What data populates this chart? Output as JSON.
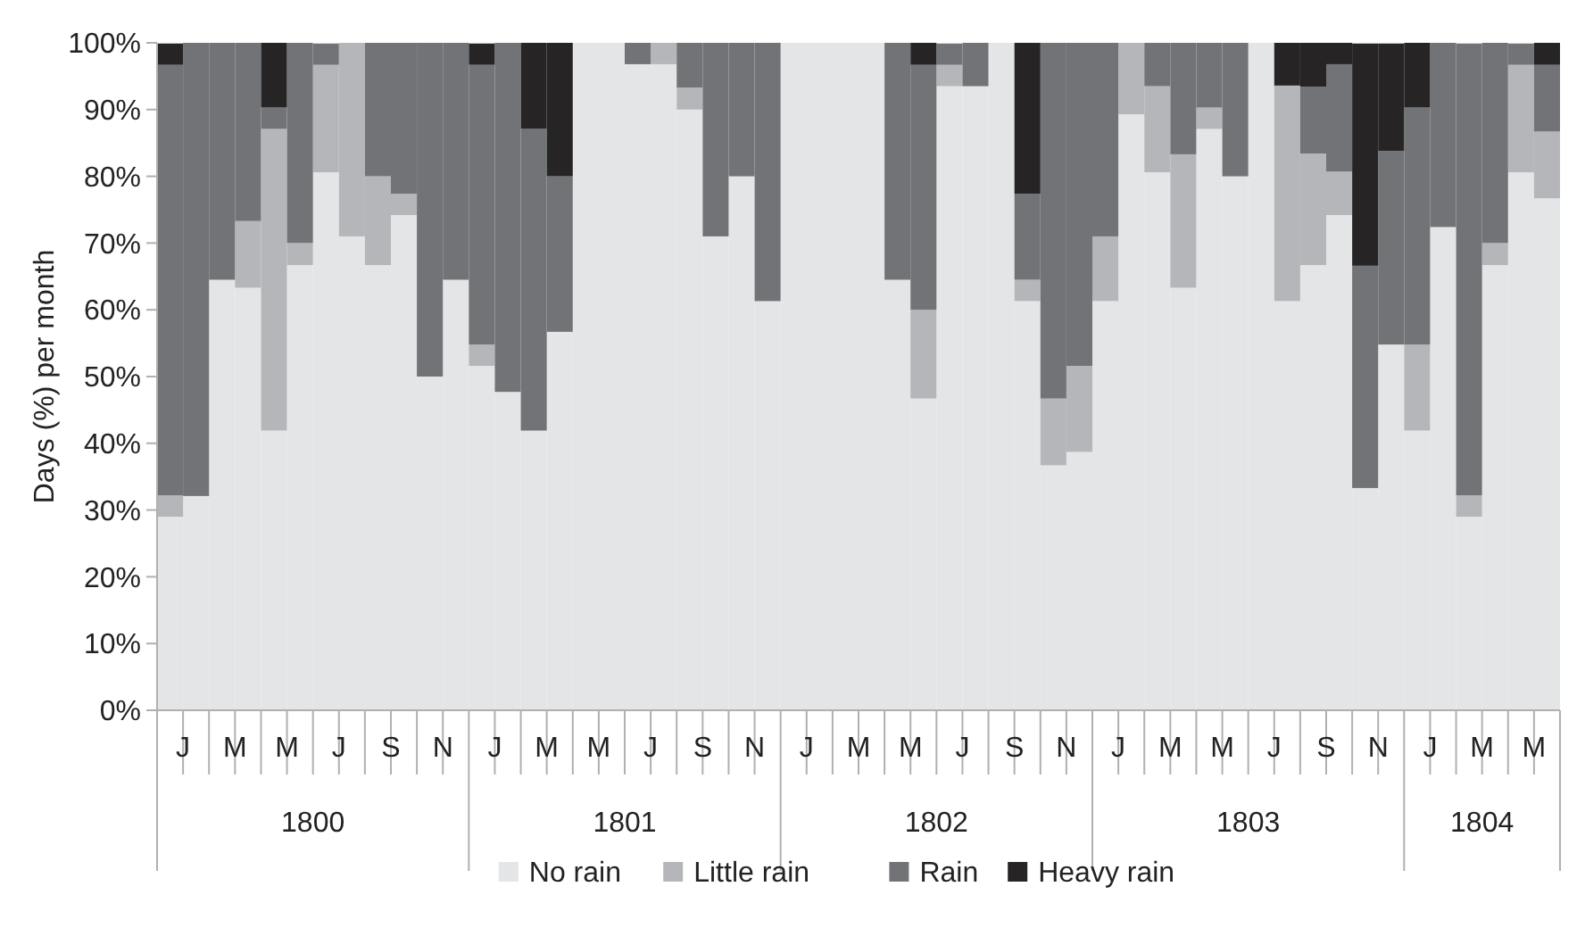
{
  "chart_data": {
    "type": "bar",
    "stacked": true,
    "ylabel": "Days (%) per month",
    "categories": [
      "J",
      null,
      "M",
      null,
      "M",
      null,
      "J",
      null,
      "S",
      null,
      "N",
      null,
      "J",
      null,
      "M",
      null,
      "M",
      null,
      "J",
      null,
      "S",
      null,
      "N",
      null,
      "J",
      null,
      "M",
      null,
      "M",
      null,
      "J",
      null,
      "S",
      null,
      "N",
      null,
      "J",
      null,
      "M",
      null,
      "M",
      null,
      "J",
      null,
      "S",
      null,
      "N",
      null,
      "J",
      null,
      "M",
      null,
      "M",
      null
    ],
    "annotations": [
      "1800",
      "1801",
      "1802",
      "1803",
      "1804"
    ],
    "ylim": [
      0,
      100
    ],
    "yticks": [
      {
        "value": 0,
        "label": "0%"
      },
      {
        "value": 10,
        "label": "10%"
      },
      {
        "value": 20,
        "label": "20%"
      },
      {
        "value": 30,
        "label": "30%"
      },
      {
        "value": 40,
        "label": "40%"
      },
      {
        "value": 50,
        "label": "50%"
      },
      {
        "value": 60,
        "label": "60%"
      },
      {
        "value": 70,
        "label": "70%"
      },
      {
        "value": 80,
        "label": "80%"
      },
      {
        "value": 90,
        "label": "90%"
      },
      {
        "value": 100,
        "label": "100%"
      }
    ],
    "legend": "bottom",
    "series": [
      {
        "name": "No rain",
        "color": "#e4e5e7",
        "values": [
          29.0,
          32.1,
          64.5,
          63.3,
          41.9,
          66.7,
          80.6,
          71.0,
          66.7,
          74.2,
          50,
          64.5,
          51.6,
          47.7,
          41.9,
          56.7,
          100,
          100,
          96.8,
          96.8,
          90,
          71.0,
          80,
          61.3,
          100,
          100,
          100,
          100,
          64.5,
          46.7,
          93.5,
          93.5,
          100,
          61.3,
          36.7,
          38.7,
          61.3,
          89.3,
          80.6,
          63.3,
          87.1,
          80,
          100,
          61.3,
          66.7,
          74.2,
          33.3,
          54.8,
          41.9,
          72.4,
          29.0,
          66.7,
          80.6,
          76.7
        ]
      },
      {
        "name": "Little rain",
        "color": "#b5b6b9",
        "values": [
          3.2,
          0,
          0,
          10,
          45.2,
          3.3,
          16.1,
          29.0,
          13.3,
          3.2,
          0,
          0,
          3.2,
          0,
          0,
          0,
          0,
          0,
          0,
          3.2,
          3.3,
          0,
          0,
          0,
          0,
          0,
          0,
          0,
          0,
          13.3,
          3.2,
          0,
          0,
          3.2,
          10,
          12.9,
          9.7,
          10.7,
          12.9,
          20,
          3.2,
          0,
          0,
          32.3,
          16.7,
          6.5,
          0,
          0,
          12.9,
          0,
          3.2,
          3.3,
          16.1,
          10
        ]
      },
      {
        "name": "Rain",
        "color": "#727377",
        "values": [
          64.5,
          67.9,
          35.5,
          26.7,
          3.2,
          30,
          3.2,
          0,
          20,
          22.6,
          50,
          35.5,
          41.9,
          52.3,
          45.2,
          23.3,
          0,
          0,
          3.2,
          0,
          6.7,
          29.0,
          20,
          38.7,
          0,
          0,
          0,
          0,
          35.5,
          36.7,
          3.2,
          6.5,
          0,
          12.9,
          53.3,
          48.4,
          29.0,
          0,
          6.5,
          16.7,
          9.7,
          20,
          0,
          0,
          10,
          16.1,
          33.3,
          29.0,
          35.5,
          27.6,
          67.7,
          30,
          3.2,
          10
        ]
      },
      {
        "name": "Heavy rain",
        "color": "#262425",
        "values": [
          3.2,
          0,
          0,
          0,
          9.7,
          0,
          0,
          0,
          0,
          0,
          0,
          0,
          3.2,
          0,
          12.9,
          20,
          0,
          0,
          0,
          0,
          0,
          0,
          0,
          0,
          0,
          0,
          0,
          0,
          0,
          3.3,
          0,
          0,
          0,
          22.6,
          0,
          0,
          0,
          0,
          0,
          0,
          0,
          0,
          0,
          6.4,
          6.6,
          3.2,
          33.3,
          16.1,
          9.7,
          0,
          0,
          0,
          0,
          3.3
        ]
      }
    ]
  }
}
